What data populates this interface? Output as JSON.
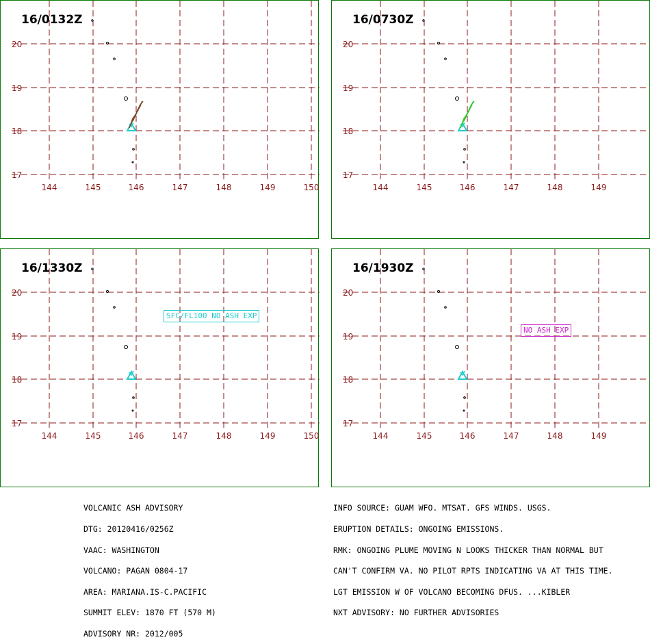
{
  "panels": [
    {
      "time": "16/0132Z",
      "plume": "#7a4a2a",
      "note": null
    },
    {
      "time": "16/0730Z",
      "plume": "#33cc33",
      "note": null
    },
    {
      "time": "16/1330Z",
      "plume": null,
      "note": {
        "text": "SFC/FL100 NO ASH EXP",
        "color": "#22cccc"
      }
    },
    {
      "time": "16/1930Z",
      "plume": null,
      "note": {
        "text": "NO ASH EXP",
        "color": "#cc22cc"
      }
    }
  ],
  "map": {
    "lon_labels_wide": [
      "144",
      "145",
      "146",
      "147",
      "148",
      "149",
      "150"
    ],
    "lon_labels_narrow": [
      "144",
      "145",
      "146",
      "147",
      "148",
      "149"
    ],
    "lat_labels": [
      "20",
      "19",
      "18",
      "17"
    ],
    "grid_color": "#8b1a1a",
    "label_color": "#8b1a1a",
    "volcano_color": "#22cccc"
  },
  "advisory_left": [
    "VOLCANIC ASH ADVISORY",
    "DTG: 20120416/0256Z",
    "VAAC: WASHINGTON",
    "VOLCANO: PAGAN 0804-17",
    "AREA: MARIANA.IS-C.PACIFIC",
    "SUMMIT ELEV: 1870 FT (570 M)",
    "ADVISORY NR: 2012/005"
  ],
  "advisory_right": [
    "INFO SOURCE: GUAM WFO. MTSAT. GFS WINDS. USGS.",
    "ERUPTION DETAILS: ONGOING EMISSIONS.",
    "RMK: ONGOING PLUME MOVING N LOOKS THICKER THAN NORMAL BUT",
    "CAN'T CONFIRM VA. NO PILOT RPTS INDICATING VA AT THIS TIME.",
    "LGT EMISSION W OF VOLCANO BECOMING DFUS. ...KIBLER",
    "NXT ADVISORY: NO FURTHER ADVISORIES"
  ]
}
